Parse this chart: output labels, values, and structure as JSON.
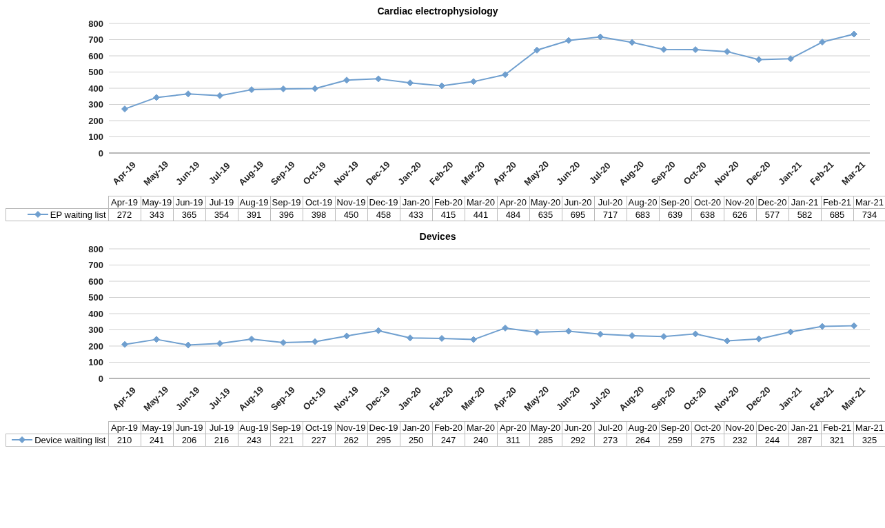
{
  "chart_data": [
    {
      "type": "line",
      "title": "Cardiac electrophysiology",
      "categories": [
        "Apr-19",
        "May-19",
        "Jun-19",
        "Jul-19",
        "Aug-19",
        "Sep-19",
        "Oct-19",
        "Nov-19",
        "Dec-19",
        "Jan-20",
        "Feb-20",
        "Mar-20",
        "Apr-20",
        "May-20",
        "Jun-20",
        "Jul-20",
        "Aug-20",
        "Sep-20",
        "Oct-20",
        "Nov-20",
        "Dec-20",
        "Jan-21",
        "Feb-21",
        "Mar-21"
      ],
      "series": [
        {
          "name": "EP waiting list",
          "color": "#6f9fcf",
          "values": [
            272,
            343,
            365,
            354,
            391,
            396,
            398,
            450,
            458,
            433,
            415,
            441,
            484,
            635,
            695,
            717,
            683,
            639,
            638,
            626,
            577,
            582,
            685,
            734
          ]
        }
      ],
      "ylim": [
        0,
        800
      ],
      "yticks": [
        0,
        100,
        200,
        300,
        400,
        500,
        600,
        700,
        800
      ],
      "grid": "y",
      "marker": "diamond",
      "legend": "bottom",
      "data_labels": true
    },
    {
      "type": "line",
      "title": "Devices",
      "categories": [
        "Apr-19",
        "May-19",
        "Jun-19",
        "Jul-19",
        "Aug-19",
        "Sep-19",
        "Oct-19",
        "Nov-19",
        "Dec-19",
        "Jan-20",
        "Feb-20",
        "Mar-20",
        "Apr-20",
        "May-20",
        "Jun-20",
        "Jul-20",
        "Aug-20",
        "Sep-20",
        "Oct-20",
        "Nov-20",
        "Dec-20",
        "Jan-21",
        "Feb-21",
        "Mar-21"
      ],
      "series": [
        {
          "name": "Device waiting list",
          "color": "#6f9fcf",
          "values": [
            210,
            241,
            206,
            216,
            243,
            221,
            227,
            262,
            295,
            250,
            247,
            240,
            311,
            285,
            292,
            273,
            264,
            259,
            275,
            232,
            244,
            287,
            321,
            325
          ]
        }
      ],
      "ylim": [
        0,
        800
      ],
      "yticks": [
        0,
        100,
        200,
        300,
        400,
        500,
        600,
        700,
        800
      ],
      "grid": "y",
      "marker": "diamond",
      "legend": "bottom",
      "data_labels": true
    }
  ]
}
